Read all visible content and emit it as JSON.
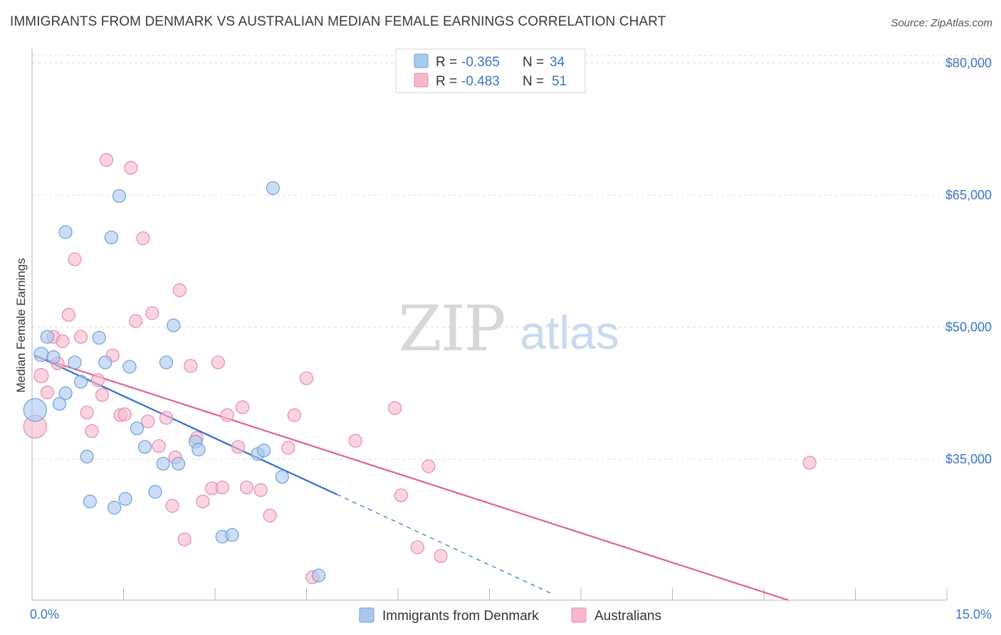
{
  "title": "IMMIGRANTS FROM DENMARK VS AUSTRALIAN MEDIAN FEMALE EARNINGS CORRELATION CHART",
  "source": "Source: ZipAtlas.com",
  "watermark": {
    "zip": "ZIP",
    "atlas": "atlas"
  },
  "legend_box": {
    "rows": [
      {
        "r_label": "R =",
        "r_value": "-0.365",
        "n_label": "N =",
        "n_value": "34"
      },
      {
        "r_label": "R =",
        "r_value": "-0.483",
        "n_label": "N =",
        "n_value": "51"
      }
    ]
  },
  "colors": {
    "blue_fill": "#a9c8ef",
    "blue_stroke": "#6f9fd8",
    "blue_line": "#2f6fcf",
    "pink_fill": "#f6b9cb",
    "pink_stroke": "#e88aa8",
    "pink_line": "#e0628e",
    "value_text": "#3a74c9",
    "grid": "#dcdcdc"
  },
  "chart_data": {
    "type": "scatter",
    "title": "IMMIGRANTS FROM DENMARK VS AUSTRALIAN MEDIAN FEMALE EARNINGS CORRELATION CHART",
    "xlabel": "",
    "ylabel": "Median Female Earnings",
    "xlim": [
      0,
      15
    ],
    "ylim": [
      19000,
      81500
    ],
    "x_tick_labels": [
      "0.0%",
      "15.0%"
    ],
    "y_ticks": [
      35000,
      50000,
      65000,
      80000
    ],
    "y_tick_labels": [
      "$35,000",
      "$50,000",
      "$65,000",
      "$80,000"
    ],
    "legend": [
      "Immigrants from Denmark",
      "Australians"
    ],
    "series": [
      {
        "name": "Immigrants from Denmark",
        "color": "#a9c8ef",
        "points": [
          [
            0.05,
            40600,
            16
          ],
          [
            0.15,
            46900,
            10
          ],
          [
            0.25,
            48900,
            9
          ],
          [
            0.35,
            46600,
            9
          ],
          [
            0.45,
            41300,
            9
          ],
          [
            0.55,
            42500,
            9
          ],
          [
            0.55,
            60800,
            9
          ],
          [
            0.7,
            46000,
            9
          ],
          [
            0.8,
            43800,
            9
          ],
          [
            0.9,
            35300,
            9
          ],
          [
            0.95,
            30200,
            9
          ],
          [
            1.1,
            48800,
            9
          ],
          [
            1.2,
            46000,
            9
          ],
          [
            1.3,
            60200,
            9
          ],
          [
            1.35,
            29500,
            9
          ],
          [
            1.43,
            64900,
            9
          ],
          [
            1.53,
            30500,
            9
          ],
          [
            1.6,
            45500,
            9
          ],
          [
            1.72,
            38500,
            9
          ],
          [
            1.85,
            36400,
            9
          ],
          [
            2.02,
            31300,
            9
          ],
          [
            2.15,
            34500,
            9
          ],
          [
            2.2,
            46000,
            9
          ],
          [
            2.32,
            50200,
            9
          ],
          [
            2.4,
            34500,
            9
          ],
          [
            2.68,
            37000,
            9
          ],
          [
            2.73,
            36100,
            9
          ],
          [
            3.12,
            26200,
            9
          ],
          [
            3.28,
            26400,
            9
          ],
          [
            3.7,
            35600,
            9
          ],
          [
            3.8,
            36000,
            9
          ],
          [
            3.95,
            65800,
            9
          ],
          [
            4.1,
            33000,
            9
          ],
          [
            4.7,
            21800,
            9
          ]
        ]
      },
      {
        "name": "Australians",
        "color": "#f6b9cb",
        "points": [
          [
            0.05,
            38700,
            16
          ],
          [
            0.15,
            44500,
            10
          ],
          [
            0.25,
            42600,
            9
          ],
          [
            0.35,
            48900,
            9
          ],
          [
            0.42,
            45900,
            9
          ],
          [
            0.5,
            48400,
            9
          ],
          [
            0.6,
            51400,
            9
          ],
          [
            0.7,
            57700,
            9
          ],
          [
            0.8,
            48900,
            9
          ],
          [
            0.9,
            40300,
            9
          ],
          [
            0.98,
            38200,
            9
          ],
          [
            1.08,
            44000,
            9
          ],
          [
            1.15,
            42300,
            9
          ],
          [
            1.22,
            69000,
            9
          ],
          [
            1.32,
            46800,
            9
          ],
          [
            1.45,
            40000,
            9
          ],
          [
            1.52,
            40100,
            9
          ],
          [
            1.62,
            68100,
            9
          ],
          [
            1.7,
            50700,
            9
          ],
          [
            1.82,
            60100,
            9
          ],
          [
            1.9,
            39300,
            9
          ],
          [
            1.97,
            51600,
            9
          ],
          [
            2.08,
            36500,
            9
          ],
          [
            2.2,
            39700,
            9
          ],
          [
            2.3,
            29700,
            9
          ],
          [
            2.35,
            35200,
            9
          ],
          [
            2.42,
            54200,
            9
          ],
          [
            2.5,
            25900,
            9
          ],
          [
            2.6,
            45600,
            9
          ],
          [
            2.7,
            37400,
            9
          ],
          [
            2.8,
            30200,
            9
          ],
          [
            2.95,
            31700,
            9
          ],
          [
            3.05,
            46000,
            9
          ],
          [
            3.12,
            31800,
            9
          ],
          [
            3.2,
            40000,
            9
          ],
          [
            3.38,
            36400,
            9
          ],
          [
            3.45,
            40900,
            9
          ],
          [
            3.52,
            31800,
            9
          ],
          [
            3.75,
            31500,
            9
          ],
          [
            3.9,
            28600,
            9
          ],
          [
            4.2,
            36300,
            9
          ],
          [
            4.3,
            40000,
            9
          ],
          [
            4.5,
            44200,
            9
          ],
          [
            4.6,
            21600,
            9
          ],
          [
            5.3,
            37100,
            9
          ],
          [
            5.95,
            40800,
            9
          ],
          [
            6.05,
            30900,
            9
          ],
          [
            6.32,
            25000,
            9
          ],
          [
            6.5,
            34200,
            9
          ],
          [
            6.7,
            24000,
            9
          ],
          [
            12.75,
            34600,
            9
          ]
        ]
      }
    ],
    "trend_lines": [
      {
        "series": "Immigrants from Denmark",
        "x_start": 0.05,
        "y_start": 46800,
        "x_end": 5.0,
        "y_end": 31000,
        "dashed_to_x": 8.5,
        "dashed_to_y": 19800
      },
      {
        "series": "Australians",
        "x_start": 0.05,
        "y_start": 46700,
        "x_end": 12.4,
        "y_end": 19000
      }
    ]
  }
}
